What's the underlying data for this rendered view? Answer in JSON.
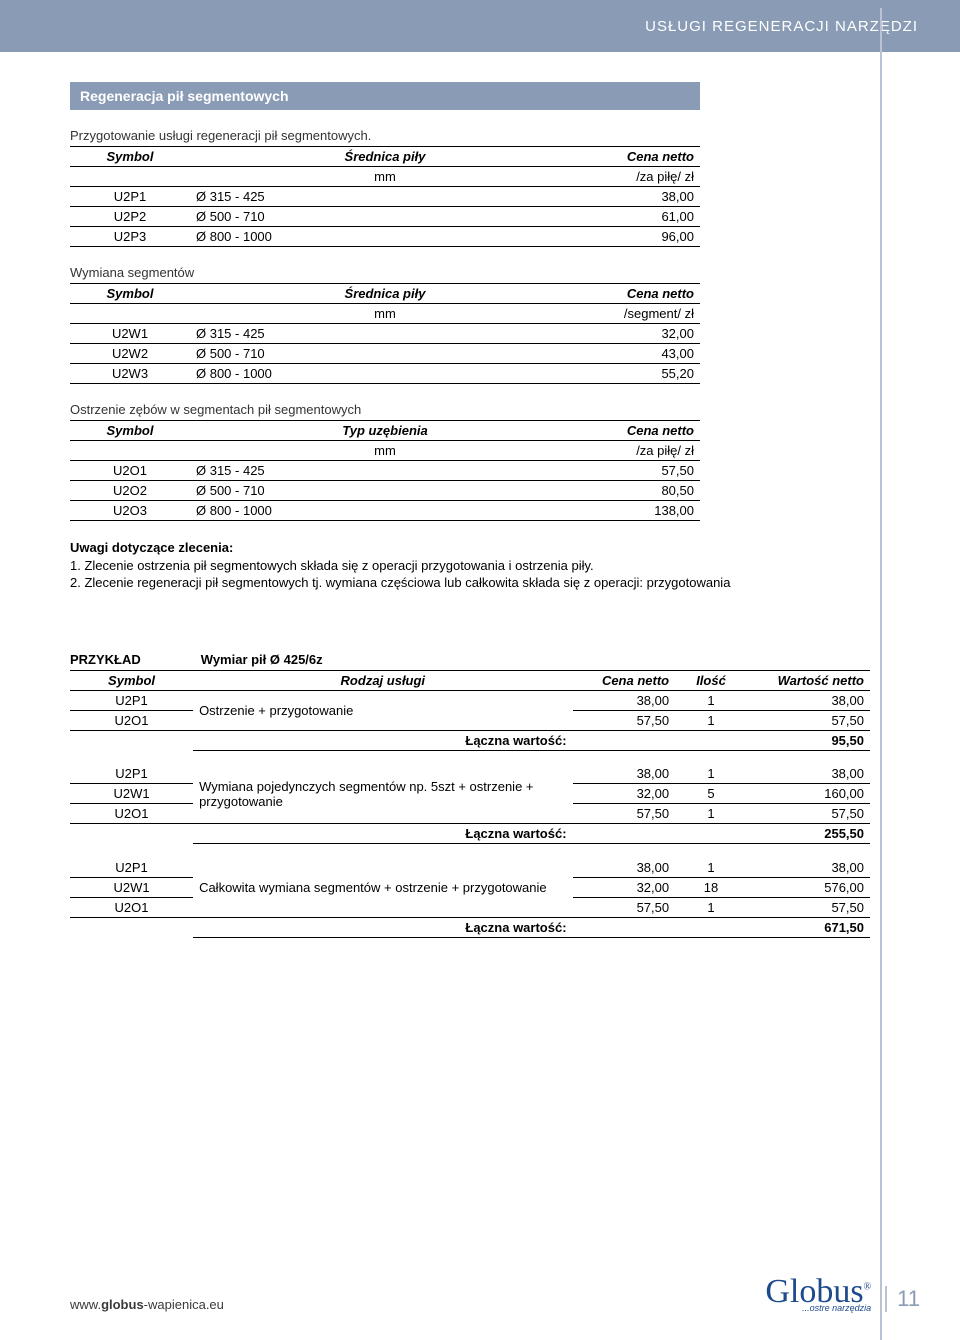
{
  "header": {
    "title": "USŁUGI REGENERACJI NARZĘDZI"
  },
  "section": {
    "title": "Regeneracja pił segmentowych"
  },
  "colors": {
    "banner": "#8a9bb5",
    "stripe": "#b9c3d5",
    "brand": "#1c4a8c"
  },
  "tables": [
    {
      "caption": "Przygotowanie usługi regeneracji pił segmentowych.",
      "headers": [
        "Symbol",
        "Średnica piły",
        "Cena netto"
      ],
      "unit_row": [
        "",
        "mm",
        "/za piłę/ zł"
      ],
      "rows": [
        [
          "U2P1",
          "Ø 315 - 425",
          "38,00"
        ],
        [
          "U2P2",
          "Ø 500 - 710",
          "61,00"
        ],
        [
          "U2P3",
          "Ø 800 - 1000",
          "96,00"
        ]
      ]
    },
    {
      "caption": "Wymiana segmentów",
      "headers": [
        "Symbol",
        "Średnica piły",
        "Cena netto"
      ],
      "unit_row": [
        "",
        "mm",
        "/segment/ zł"
      ],
      "rows": [
        [
          "U2W1",
          "Ø 315 - 425",
          "32,00"
        ],
        [
          "U2W2",
          "Ø 500 - 710",
          "43,00"
        ],
        [
          "U2W3",
          "Ø 800 - 1000",
          "55,20"
        ]
      ]
    },
    {
      "caption": "Ostrzenie zębów w segmentach pił segmentowych",
      "headers": [
        "Symbol",
        "Typ uzębienia",
        "Cena netto"
      ],
      "unit_row": [
        "",
        "mm",
        "/za piłę/ zł"
      ],
      "rows": [
        [
          "U2O1",
          "Ø 315 - 425",
          "57,50"
        ],
        [
          "U2O2",
          "Ø 500 - 710",
          "80,50"
        ],
        [
          "U2O3",
          "Ø 800 - 1000",
          "138,00"
        ]
      ]
    }
  ],
  "notes": {
    "title": "Uwagi dotyczące zlecenia:",
    "lines": [
      "1. Zlecenie ostrzenia pił segmentowych składa się z operacji przygotowania i ostrzenia piły.",
      "2. Zlecenie regeneracji pił segmentowych tj. wymiana częściowa lub całkowita składa się z operacji: przygotowania"
    ]
  },
  "example": {
    "label": "PRZYKŁAD",
    "dimension": "Wymiar pił Ø 425/6z",
    "headers": [
      "Symbol",
      "Rodzaj usługi",
      "Cena netto",
      "Ilość",
      "Wartość netto"
    ],
    "sum_label": "Łączna wartość:",
    "groups": [
      {
        "desc": "Ostrzenie + przygotowanie",
        "rows": [
          [
            "U2P1",
            "38,00",
            "1",
            "38,00"
          ],
          [
            "U2O1",
            "57,50",
            "1",
            "57,50"
          ]
        ],
        "sum": "95,50"
      },
      {
        "desc": "Wymiana pojedynczych segmentów np. 5szt + ostrzenie + przygotowanie",
        "rows": [
          [
            "U2P1",
            "38,00",
            "1",
            "38,00"
          ],
          [
            "U2W1",
            "32,00",
            "5",
            "160,00"
          ],
          [
            "U2O1",
            "57,50",
            "1",
            "57,50"
          ]
        ],
        "sum": "255,50"
      },
      {
        "desc": "Całkowita wymiana segmentów + ostrzenie + przygotowanie",
        "rows": [
          [
            "U2P1",
            "38,00",
            "1",
            "38,00"
          ],
          [
            "U2W1",
            "32,00",
            "18",
            "576,00"
          ],
          [
            "U2O1",
            "57,50",
            "1",
            "57,50"
          ]
        ],
        "sum": "671,50"
      }
    ]
  },
  "footer": {
    "url_prefix": "www.",
    "url_bold": "globus",
    "url_suffix": "-wapienica.eu",
    "brand": "Globus",
    "brand_tag": "...ostre narzędzia",
    "page": "11"
  }
}
